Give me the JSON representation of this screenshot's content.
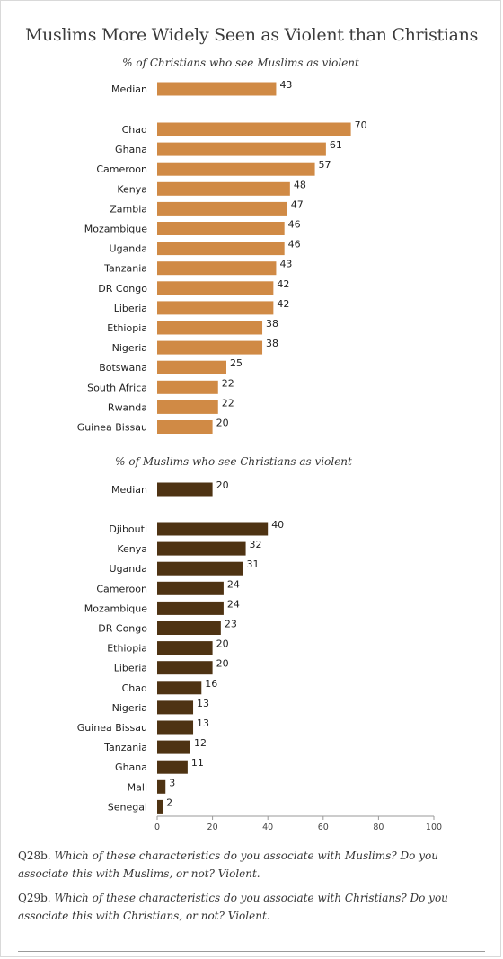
{
  "title": "Muslims More Widely Seen as Violent than Christians",
  "colors": {
    "panel1": "#d08a45",
    "panel2": "#4e3313",
    "axis": "#999999"
  },
  "chart_data": [
    {
      "type": "bar",
      "orientation": "horizontal",
      "subtitle": "% of Christians who see Muslims as violent",
      "median": {
        "label": "Median",
        "value": 43
      },
      "categories": [
        "Chad",
        "Ghana",
        "Cameroon",
        "Kenya",
        "Zambia",
        "Mozambique",
        "Uganda",
        "Tanzania",
        "DR Congo",
        "Liberia",
        "Ethiopia",
        "Nigeria",
        "Botswana",
        "South Africa",
        "Rwanda",
        "Guinea Bissau"
      ],
      "values": [
        70,
        61,
        57,
        48,
        47,
        46,
        46,
        43,
        42,
        42,
        38,
        38,
        25,
        22,
        22,
        20
      ],
      "xlim": [
        0,
        100
      ]
    },
    {
      "type": "bar",
      "orientation": "horizontal",
      "subtitle": "% of Muslims who see Christians as violent",
      "median": {
        "label": "Median",
        "value": 20
      },
      "categories": [
        "Djibouti",
        "Kenya",
        "Uganda",
        "Cameroon",
        "Mozambique",
        "DR Congo",
        "Ethiopia",
        "Liberia",
        "Chad",
        "Nigeria",
        "Guinea Bissau",
        "Tanzania",
        "Ghana",
        "Mali",
        "Senegal"
      ],
      "values": [
        40,
        32,
        31,
        24,
        24,
        23,
        20,
        20,
        16,
        13,
        13,
        12,
        11,
        3,
        2
      ],
      "xlim": [
        0,
        100
      ],
      "xticks": [
        "0",
        "20",
        "40",
        "60",
        "80",
        "100"
      ]
    }
  ],
  "notes": [
    {
      "code": "Q28b.",
      "text": "Which of these characteristics do you associate with Muslims?  Do you associate this with Muslims, or not? Violent."
    },
    {
      "code": "Q29b.",
      "text": "Which of these characteristics do you associate with Christians? Do you associate this with Christians, or not? Violent."
    }
  ]
}
